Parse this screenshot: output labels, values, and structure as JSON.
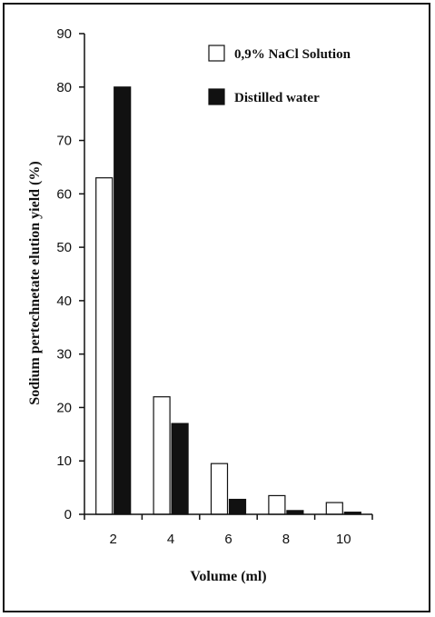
{
  "chart_data": {
    "type": "bar",
    "categories": [
      "2",
      "4",
      "6",
      "8",
      "10"
    ],
    "series": [
      {
        "name": "0,9% NaCl Solution",
        "values": [
          63,
          22,
          9.5,
          3.5,
          2.2
        ],
        "color": "#ffffff"
      },
      {
        "name": "Distilled water",
        "values": [
          80,
          17,
          2.8,
          0.7,
          0.4
        ],
        "color": "#111111"
      }
    ],
    "xlabel": "Volume (ml)",
    "ylabel": "Sodium pertechnetate elution yield (%)",
    "ylim": [
      0,
      90
    ],
    "yticks": [
      0,
      10,
      20,
      30,
      40,
      50,
      60,
      70,
      80,
      90
    ],
    "grid": false,
    "legend_position": "top-right"
  }
}
